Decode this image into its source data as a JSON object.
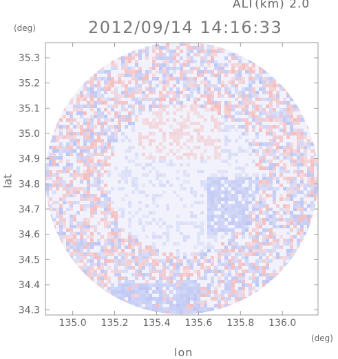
{
  "header": {
    "altitude_label": "ALT(km) 2.0",
    "timestamp": "2012/09/14 14:16:33",
    "y_unit": "(deg)",
    "x_unit": "(deg)"
  },
  "axes": {
    "x_label": "lon",
    "y_label": "lat",
    "x_ticks": [
      "135.0",
      "135.2",
      "135.4",
      "135.6",
      "135.8",
      "136.0"
    ],
    "y_ticks": [
      "35.3",
      "35.2",
      "35.1",
      "35.0",
      "34.9",
      "34.8",
      "34.7",
      "34.6",
      "34.5",
      "34.4",
      "34.3"
    ]
  },
  "map": {
    "x_range": [
      134.87,
      136.17
    ],
    "y_range": [
      34.28,
      35.36
    ],
    "colors": {
      "background": "#f1f2fb",
      "positive": "#f5b4b4",
      "negative": "#b4bdf2",
      "axis": "#999999"
    }
  }
}
